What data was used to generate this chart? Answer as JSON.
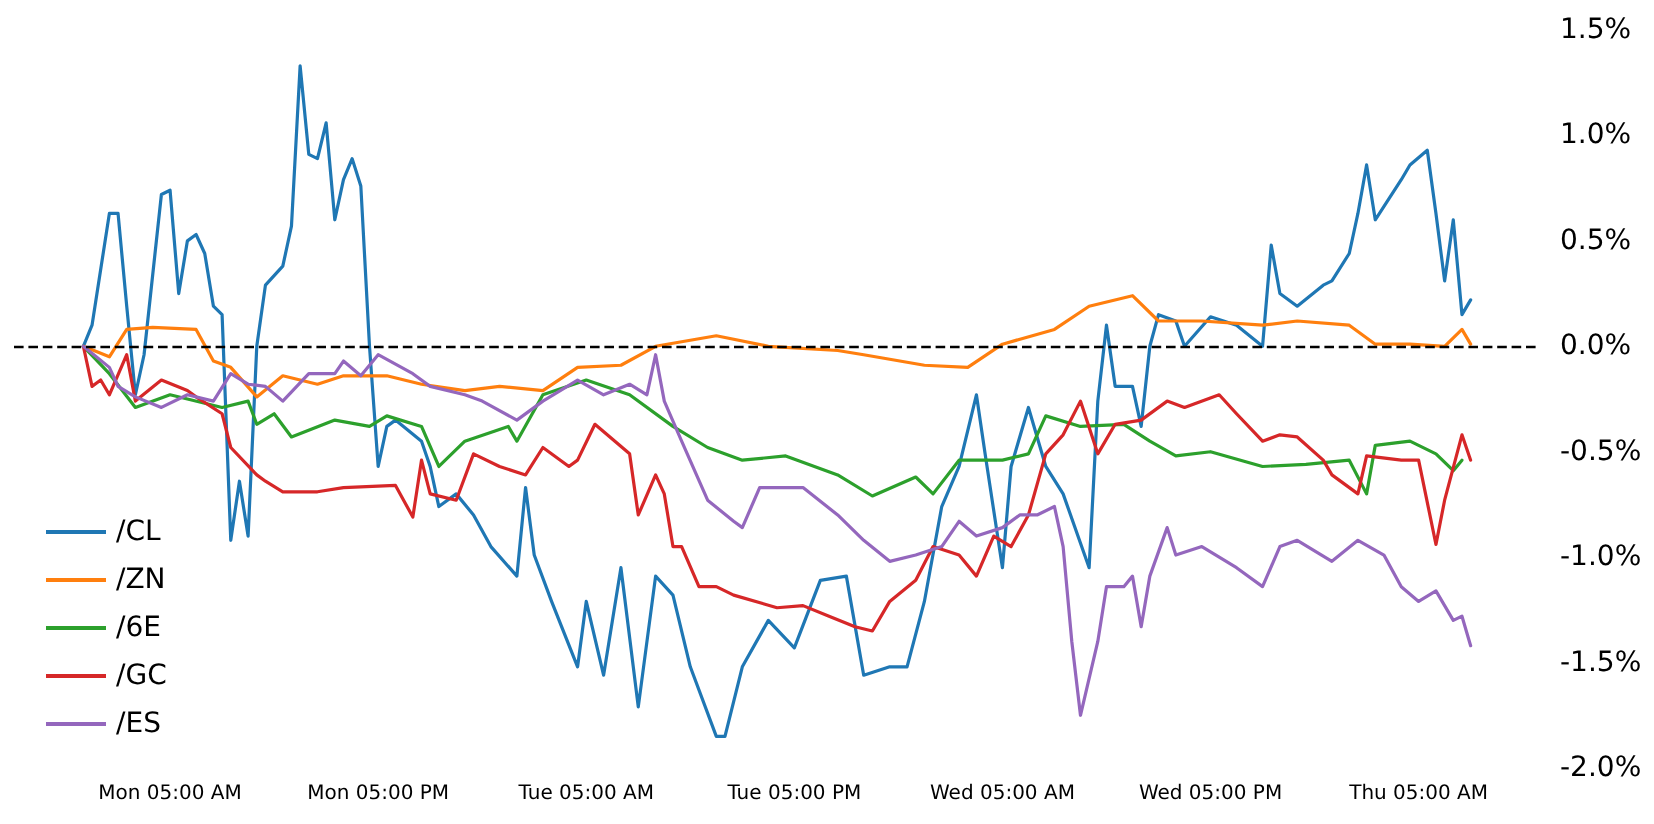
{
  "chart_data": {
    "type": "line",
    "marker": "none",
    "line_style": "solid",
    "legend": "bottom left",
    "grid": false,
    "categories": [
      null,
      null,
      null,
      null,
      null,
      null,
      null,
      null,
      null,
      null,
      null,
      null,
      null,
      null,
      null,
      null,
      null,
      null,
      "Mon 05:00 AM",
      null,
      null,
      null,
      null,
      null,
      null,
      null,
      null,
      null,
      null,
      null,
      null,
      null,
      null,
      null,
      null,
      null,
      null,
      null,
      null,
      null,
      null,
      null,
      "Mon 05:00 PM",
      null,
      null,
      null,
      null,
      null,
      null,
      null,
      null,
      null,
      null,
      null,
      null,
      null,
      null,
      null,
      null,
      null,
      null,
      null,
      null,
      null,
      null,
      null,
      "Tue 05:00 AM",
      null,
      null,
      null,
      null,
      null,
      null,
      null,
      null,
      null,
      null,
      null,
      null,
      null,
      null,
      null,
      null,
      null,
      null,
      null,
      null,
      null,
      null,
      null,
      "Tue 05:00 PM",
      null,
      null,
      null,
      null,
      null,
      null,
      null,
      null,
      null,
      null,
      null,
      null,
      null,
      null,
      null,
      null,
      null,
      null,
      null,
      null,
      null,
      null,
      null,
      "Wed 05:00 AM",
      null,
      null,
      null,
      null,
      null,
      null,
      null,
      null,
      null,
      null,
      null,
      null,
      null,
      null,
      null,
      null,
      null,
      null,
      null,
      null,
      null,
      null,
      null,
      "Wed 05:00 PM",
      null,
      null,
      null,
      null,
      null,
      null,
      null,
      null,
      null,
      null,
      null,
      null,
      null,
      null,
      null,
      null,
      null,
      null,
      null,
      null,
      null,
      null,
      null,
      "Thu 05:00 AM",
      null,
      null,
      null,
      null,
      null,
      null,
      null,
      null,
      null,
      null,
      null,
      null,
      null,
      null
    ],
    "ylim": [
      -2.0,
      1.5
    ],
    "yticks": [
      {
        "value": -2.0,
        "label": "-2.0%"
      },
      {
        "value": -1.5,
        "label": "-1.5%"
      },
      {
        "value": -1.0,
        "label": "-1.0%"
      },
      {
        "value": -0.5,
        "label": "-0.5%"
      },
      {
        "value": 0,
        "label": "0.0%"
      },
      {
        "value": 0.5,
        "label": "0.5%"
      },
      {
        "value": 1.0,
        "label": "1.0%"
      },
      {
        "value": 1.5,
        "label": "1.5%"
      }
    ],
    "ref_lines": [
      {
        "axis": "y",
        "value": 0,
        "color": "#000000",
        "line_style": "dashed"
      }
    ],
    "series": [
      {
        "name": "/CL",
        "color": "#1f77b4",
        "values": [
          null,
          null,
          null,
          null,
          null,
          null,
          null,
          null,
          0,
          0.1,
          null,
          0.63,
          0.63,
          0.19,
          -0.23,
          -0.04,
          null,
          0.72,
          0.74,
          0.25,
          0.5,
          0.53,
          0.44,
          0.19,
          0.15,
          -0.92,
          -0.64,
          -0.9,
          0,
          0.29,
          null,
          0.38,
          0.57,
          1.33,
          0.91,
          0.89,
          1.06,
          0.6,
          0.79,
          0.89,
          0.76,
          0,
          -0.57,
          -0.38,
          -0.35,
          null,
          null,
          -0.45,
          -0.57,
          -0.76,
          null,
          -0.7,
          null,
          -0.8,
          null,
          -0.95,
          null,
          null,
          -1.09,
          -0.67,
          -0.99,
          null,
          -1.21,
          null,
          null,
          -1.52,
          -1.21,
          null,
          -1.56,
          null,
          -1.05,
          null,
          -1.71,
          null,
          -1.09,
          null,
          -1.18,
          null,
          -1.52,
          null,
          null,
          -1.85,
          -1.85,
          null,
          -1.52,
          null,
          null,
          -1.3,
          null,
          null,
          -1.43,
          null,
          null,
          -1.11,
          null,
          null,
          -1.09,
          null,
          -1.56,
          null,
          null,
          -1.52,
          null,
          -1.52,
          null,
          -1.21,
          null,
          -0.76,
          null,
          -0.57,
          null,
          -0.23,
          -0.51,
          null,
          -1.05,
          -0.57,
          null,
          -0.29,
          null,
          -0.57,
          null,
          -0.7,
          null,
          null,
          -1.05,
          -0.26,
          0.1,
          -0.19,
          null,
          -0.19,
          -0.38,
          0,
          0.15,
          null,
          0.12,
          0,
          null,
          null,
          0.14,
          null,
          null,
          0.1,
          null,
          null,
          0,
          0.48,
          0.25,
          null,
          0.19,
          null,
          null,
          0.29,
          0.31,
          null,
          0.44,
          0.63,
          0.86,
          0.6,
          null,
          null,
          0.79,
          0.86,
          null,
          0.93,
          0.63,
          0.31,
          0.6,
          0.15,
          0.22,
          null,
          null,
          null,
          null,
          null,
          null,
          null,
          null
        ]
      },
      {
        "name": "/ZN",
        "color": "#ff7f0e",
        "values": [
          null,
          null,
          null,
          null,
          null,
          null,
          null,
          null,
          0,
          null,
          null,
          -0.05,
          null,
          0.08,
          null,
          null,
          0.09,
          null,
          null,
          null,
          null,
          0.08,
          null,
          -0.07,
          null,
          -0.1,
          null,
          null,
          -0.24,
          null,
          null,
          -0.14,
          null,
          null,
          null,
          -0.18,
          null,
          null,
          -0.14,
          null,
          null,
          null,
          null,
          -0.14,
          null,
          null,
          null,
          -0.18,
          null,
          null,
          null,
          null,
          -0.21,
          null,
          null,
          null,
          -0.19,
          null,
          null,
          null,
          null,
          -0.21,
          null,
          null,
          null,
          -0.1,
          null,
          null,
          null,
          null,
          -0.09,
          null,
          null,
          null,
          0,
          null,
          null,
          null,
          null,
          null,
          null,
          0.05,
          null,
          null,
          null,
          null,
          null,
          0,
          null,
          null,
          null,
          null,
          null,
          null,
          null,
          -0.02,
          null,
          null,
          -0.04,
          null,
          null,
          null,
          null,
          null,
          null,
          -0.09,
          null,
          null,
          null,
          null,
          -0.1,
          null,
          null,
          null,
          0.01,
          null,
          null,
          null,
          null,
          null,
          0.08,
          null,
          null,
          null,
          0.19,
          null,
          null,
          null,
          null,
          0.24,
          null,
          null,
          0.12,
          null,
          null,
          null,
          null,
          0.12,
          null,
          null,
          null,
          null,
          null,
          null,
          0.1,
          null,
          null,
          null,
          0.12,
          null,
          null,
          null,
          null,
          null,
          0.1,
          null,
          null,
          0.01,
          null,
          null,
          null,
          0.01,
          null,
          null,
          null,
          0,
          null,
          0.08,
          0.01,
          null,
          null,
          null,
          null,
          null,
          null,
          null,
          null
        ]
      },
      {
        "name": "/6E",
        "color": "#2ca02c",
        "values": [
          null,
          null,
          null,
          null,
          null,
          null,
          null,
          null,
          0,
          null,
          null,
          -0.13,
          null,
          null,
          -0.29,
          null,
          null,
          null,
          -0.23,
          null,
          null,
          null,
          null,
          null,
          -0.29,
          null,
          null,
          -0.26,
          -0.37,
          null,
          -0.32,
          null,
          -0.43,
          null,
          null,
          null,
          null,
          -0.35,
          null,
          null,
          null,
          -0.38,
          null,
          -0.33,
          null,
          null,
          null,
          -0.38,
          null,
          -0.57,
          null,
          null,
          -0.45,
          null,
          null,
          null,
          null,
          -0.38,
          -0.45,
          null,
          null,
          -0.23,
          null,
          null,
          null,
          null,
          -0.16,
          null,
          null,
          null,
          null,
          -0.23,
          null,
          null,
          null,
          null,
          -0.38,
          null,
          null,
          null,
          -0.48,
          null,
          null,
          null,
          -0.54,
          null,
          null,
          null,
          null,
          -0.52,
          null,
          null,
          null,
          null,
          null,
          -0.61,
          null,
          null,
          null,
          -0.71,
          null,
          null,
          null,
          null,
          -0.62,
          null,
          -0.7,
          null,
          null,
          -0.54,
          null,
          null,
          null,
          null,
          -0.54,
          null,
          null,
          -0.51,
          null,
          -0.33,
          null,
          null,
          null,
          -0.38,
          null,
          null,
          null,
          null,
          -0.37,
          null,
          null,
          -0.45,
          null,
          null,
          -0.52,
          null,
          null,
          null,
          -0.5,
          null,
          null,
          null,
          null,
          null,
          -0.57,
          null,
          null,
          null,
          null,
          -0.56,
          null,
          null,
          null,
          null,
          -0.54,
          null,
          -0.7,
          -0.47,
          null,
          null,
          null,
          -0.45,
          null,
          null,
          -0.51,
          null,
          -0.59,
          -0.54,
          null,
          null,
          null,
          null,
          null,
          null,
          null,
          null,
          null
        ]
      },
      {
        "name": "/GC",
        "color": "#d62728",
        "values": [
          null,
          null,
          null,
          null,
          null,
          null,
          null,
          null,
          0,
          -0.19,
          -0.16,
          -0.23,
          null,
          -0.04,
          -0.26,
          null,
          null,
          -0.16,
          null,
          null,
          -0.21,
          -0.24,
          null,
          null,
          -0.32,
          -0.48,
          null,
          null,
          -0.61,
          -0.64,
          null,
          -0.69,
          null,
          null,
          null,
          -0.69,
          null,
          null,
          -0.67,
          null,
          null,
          null,
          null,
          null,
          -0.66,
          null,
          -0.81,
          -0.54,
          -0.7,
          null,
          null,
          -0.73,
          null,
          -0.51,
          null,
          null,
          -0.57,
          null,
          null,
          -0.61,
          null,
          -0.48,
          null,
          null,
          -0.57,
          -0.54,
          null,
          -0.37,
          null,
          null,
          null,
          -0.51,
          -0.8,
          null,
          -0.61,
          -0.7,
          -0.95,
          -0.95,
          null,
          -1.14,
          null,
          -1.14,
          null,
          -1.18,
          null,
          null,
          null,
          null,
          -1.24,
          null,
          null,
          -1.23,
          null,
          null,
          -1.28,
          null,
          null,
          -1.33,
          null,
          -1.35,
          null,
          -1.21,
          null,
          null,
          -1.11,
          null,
          -0.95,
          null,
          null,
          -0.99,
          null,
          -1.09,
          null,
          -0.9,
          null,
          -0.95,
          null,
          -0.8,
          null,
          -0.51,
          null,
          -0.42,
          null,
          -0.26,
          null,
          -0.51,
          null,
          -0.37,
          null,
          null,
          -0.35,
          null,
          null,
          -0.26,
          null,
          -0.29,
          null,
          null,
          null,
          -0.23,
          null,
          -0.32,
          null,
          null,
          -0.45,
          null,
          -0.42,
          null,
          -0.43,
          null,
          null,
          -0.54,
          -0.61,
          null,
          null,
          -0.7,
          -0.52,
          null,
          null,
          null,
          -0.54,
          null,
          -0.54,
          null,
          -0.94,
          -0.73,
          null,
          -0.42,
          -0.54,
          null,
          null,
          null,
          null,
          null,
          null,
          null,
          null
        ]
      },
      {
        "name": "/ES",
        "color": "#9467bd",
        "values": [
          null,
          null,
          null,
          null,
          null,
          null,
          null,
          null,
          0,
          null,
          null,
          -0.1,
          -0.19,
          null,
          -0.24,
          null,
          null,
          -0.29,
          null,
          null,
          -0.23,
          null,
          null,
          -0.26,
          null,
          -0.13,
          null,
          -0.18,
          null,
          -0.19,
          null,
          -0.26,
          null,
          null,
          -0.13,
          null,
          null,
          -0.13,
          -0.07,
          null,
          -0.14,
          null,
          -0.04,
          null,
          null,
          null,
          -0.13,
          null,
          -0.19,
          null,
          null,
          null,
          -0.23,
          null,
          -0.26,
          null,
          null,
          null,
          -0.35,
          null,
          null,
          -0.26,
          null,
          null,
          null,
          -0.16,
          null,
          null,
          -0.23,
          null,
          null,
          -0.18,
          null,
          -0.23,
          -0.04,
          -0.26,
          null,
          -0.45,
          null,
          null,
          -0.73,
          null,
          null,
          -0.83,
          -0.86,
          null,
          -0.67,
          null,
          null,
          null,
          null,
          -0.67,
          null,
          null,
          null,
          -0.8,
          null,
          null,
          -0.92,
          null,
          null,
          -1.02,
          null,
          null,
          -0.99,
          null,
          null,
          -0.95,
          null,
          -0.83,
          null,
          -0.9,
          null,
          null,
          -0.86,
          null,
          -0.8,
          null,
          -0.8,
          null,
          -0.76,
          -0.95,
          -1.4,
          -1.75,
          null,
          -1.4,
          -1.14,
          null,
          -1.14,
          -1.09,
          -1.33,
          -1.09,
          null,
          -0.86,
          -0.99,
          null,
          null,
          -0.95,
          null,
          null,
          null,
          -1.05,
          null,
          null,
          -1.14,
          null,
          -0.95,
          null,
          -0.92,
          null,
          null,
          null,
          -1.02,
          null,
          null,
          -0.92,
          null,
          null,
          -0.99,
          null,
          -1.14,
          null,
          -1.21,
          null,
          -1.16,
          null,
          -1.3,
          -1.28,
          -1.42,
          null,
          null,
          null,
          null,
          null,
          null,
          null,
          null
        ]
      }
    ]
  }
}
